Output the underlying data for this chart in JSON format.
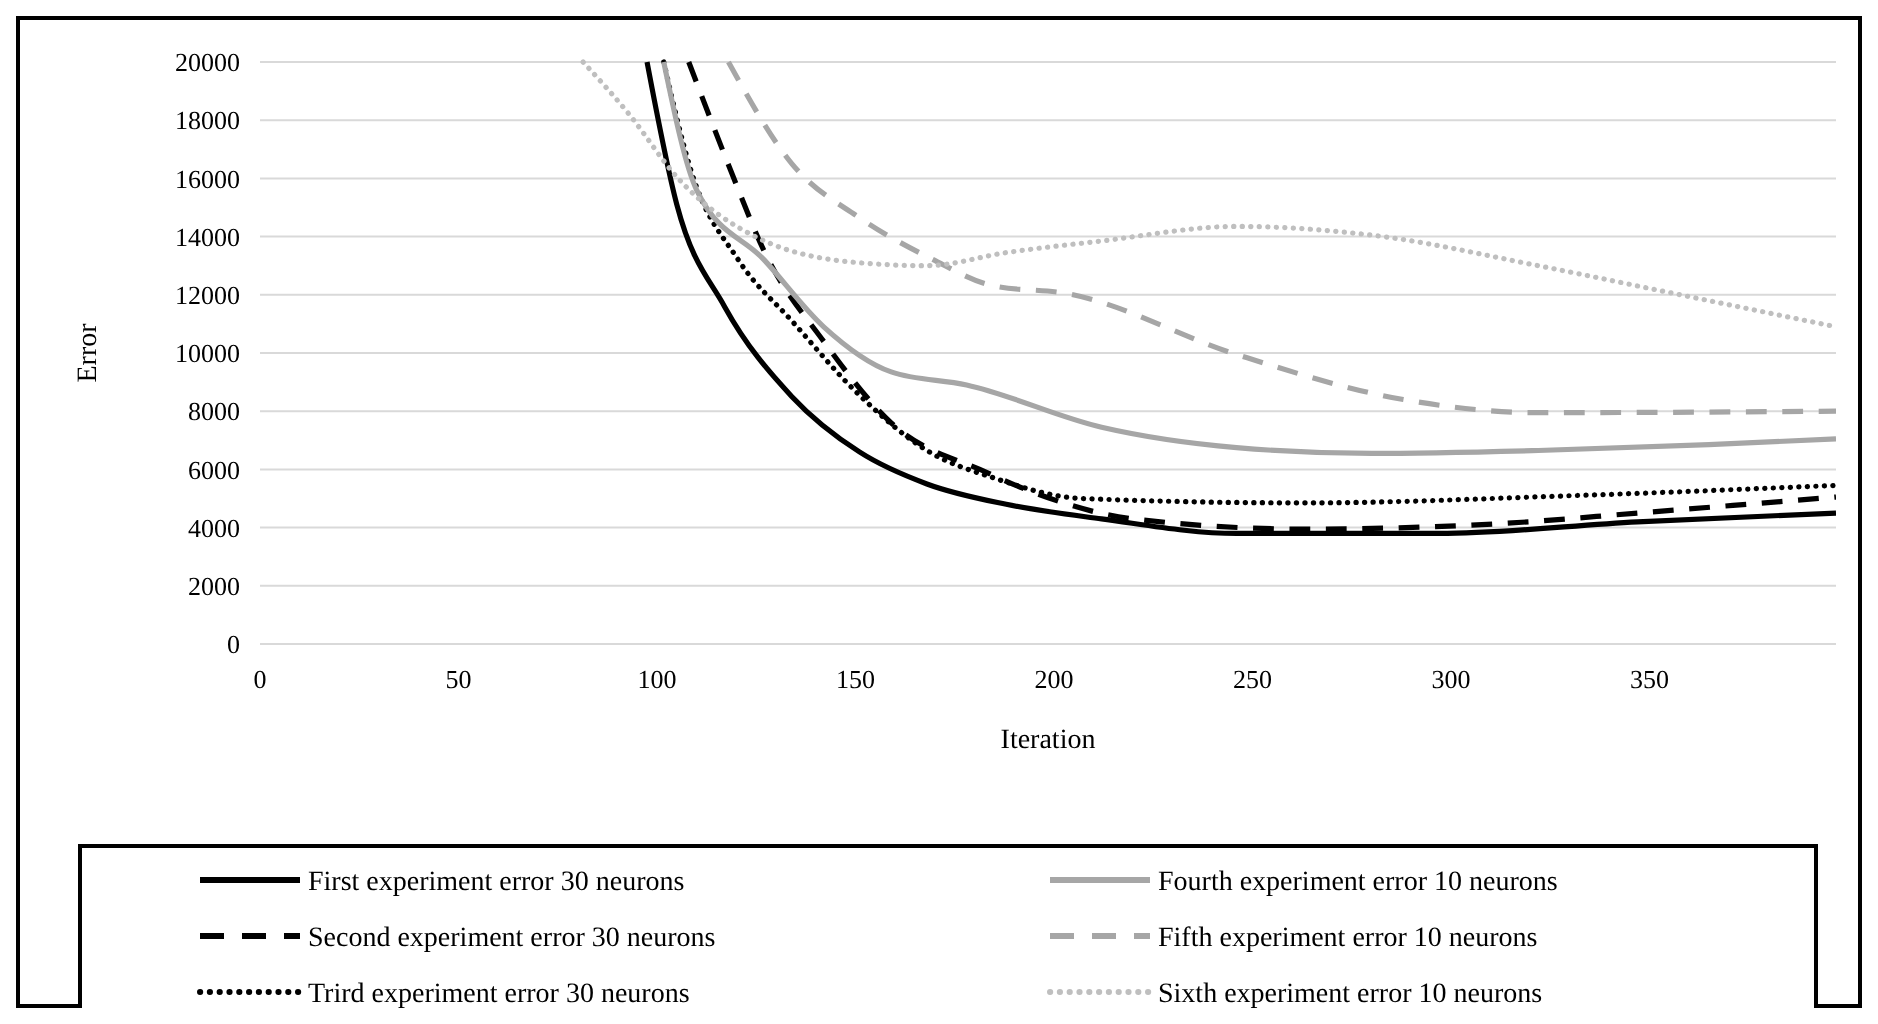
{
  "chart_data": {
    "type": "line",
    "xlabel": "Iteration",
    "ylabel": "Error",
    "xlim": [
      0,
      397
    ],
    "xticks": [
      0,
      50,
      100,
      150,
      200,
      250,
      300,
      350
    ],
    "ylim": [
      0,
      20000
    ],
    "yticks": [
      0,
      2000,
      4000,
      6000,
      8000,
      10000,
      12000,
      14000,
      16000,
      18000,
      20000
    ],
    "grid": "y",
    "legend": "bottom",
    "marker": "none",
    "series": [
      {
        "name": "First experiment error 30 neurons",
        "color": "#000000",
        "line_style": "solid",
        "x": [
          97.5,
          105,
          117,
          134,
          151,
          168,
          188,
          212,
          246,
          297,
          347,
          397
        ],
        "values": [
          20000,
          15100,
          11600,
          8500,
          6600,
          5500,
          4800,
          4300,
          3800,
          3800,
          4200,
          4500
        ]
      },
      {
        "name": "Second experiment error 30 neurons",
        "color": "#000000",
        "line_style": "dashed",
        "x": [
          108,
          118.5,
          127,
          142,
          159,
          183,
          195,
          220,
          263,
          314,
          347,
          397
        ],
        "values": [
          20000,
          16300,
          13500,
          10400,
          7600,
          5900,
          5200,
          4300,
          3950,
          4150,
          4500,
          5050
        ]
      },
      {
        "name": "Trird experiment error 30 neurons",
        "color": "#000000",
        "line_style": "dotted",
        "x": [
          101.7,
          108.5,
          120.5,
          134,
          151,
          168,
          185,
          207,
          263,
          331,
          397
        ],
        "values": [
          20000,
          16300,
          13200,
          11100,
          8550,
          6650,
          5700,
          5000,
          4850,
          5100,
          5450
        ]
      },
      {
        "name": "Fourth experiment error 10 neurons",
        "color": "#a6a6a6",
        "line_style": "solid",
        "x": [
          101.7,
          110,
          127,
          142,
          159,
          178,
          212,
          246,
          280,
          322,
          365,
          397
        ],
        "values": [
          20000,
          15600,
          13200,
          10900,
          9350,
          8900,
          7450,
          6750,
          6550,
          6650,
          6850,
          7050
        ]
      },
      {
        "name": "Fifth experiment error 10 neurons",
        "color": "#a6a6a6",
        "line_style": "dashed",
        "x": [
          118,
          134,
          151,
          169,
          185,
          203,
          246,
          288,
          322,
          397
        ],
        "values": [
          20000,
          16500,
          14650,
          13250,
          12300,
          12050,
          9950,
          8400,
          7950,
          8000
        ]
      },
      {
        "name": "Sixth experiment error 10 neurons",
        "color": "#bfbfbf",
        "line_style": "dotted",
        "x": [
          81.4,
          93,
          105,
          125.5,
          151,
          168,
          188,
          212,
          246,
          280,
          322,
          356,
          397
        ],
        "values": [
          20000,
          18200,
          16050,
          13950,
          13100,
          13000,
          13450,
          13850,
          14350,
          14050,
          13000,
          12050,
          10900
        ]
      }
    ]
  }
}
